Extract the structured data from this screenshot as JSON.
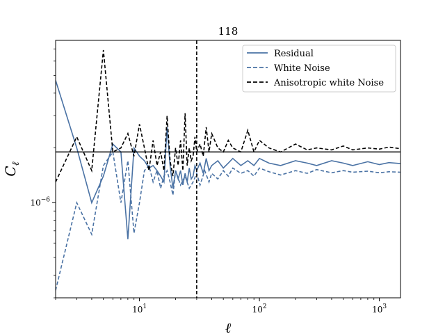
{
  "chart_data": {
    "type": "line",
    "title": "118",
    "xlabel": "ℓ",
    "ylabel_main": "C",
    "ylabel_sub": "ℓ",
    "xscale": "log",
    "yscale": "log",
    "xlim": [
      2,
      1500
    ],
    "ylim": [
      3e-07,
      7.8e-06
    ],
    "x_ticks": [
      {
        "value": 10,
        "base": "10",
        "exp": "1"
      },
      {
        "value": 100,
        "base": "10",
        "exp": "2"
      },
      {
        "value": 1000,
        "base": "10",
        "exp": "3"
      }
    ],
    "y_ticks": [
      {
        "value": 1e-06,
        "base": "10",
        "exp": "−6"
      }
    ],
    "hline": {
      "y": 1.9e-06,
      "color": "#000000"
    },
    "vline": {
      "x": 30,
      "color": "#000000",
      "style": "dashed"
    },
    "legend_position": "top-right",
    "series": [
      {
        "name": "Residual",
        "color": "#4a72a4",
        "style": "solid",
        "x": [
          2,
          3,
          4,
          5,
          6,
          7,
          8,
          9,
          10,
          11,
          12,
          13,
          14,
          15,
          16,
          17,
          18,
          19,
          20,
          21,
          22,
          23,
          24,
          25,
          26,
          27,
          28,
          29,
          30,
          32,
          34,
          36,
          38,
          40,
          45,
          50,
          55,
          60,
          70,
          80,
          90,
          100,
          120,
          150,
          200,
          250,
          300,
          400,
          500,
          600,
          800,
          1000,
          1200,
          1500
        ],
        "y": [
          4.7e-06,
          2e-06,
          1e-06,
          1.4e-06,
          2.1e-06,
          1.9e-06,
          6.3e-07,
          2e-06,
          1.8e-06,
          1.7e-06,
          1.55e-06,
          1.6e-06,
          1.5e-06,
          1.4e-06,
          1.3e-06,
          2.6e-06,
          1.6e-06,
          1.2e-06,
          1.5e-06,
          1.35e-06,
          1.5e-06,
          1.25e-06,
          1.45e-06,
          1.3e-06,
          1.55e-06,
          1.35e-06,
          1.4e-06,
          1.6e-06,
          1.5e-06,
          1.65e-06,
          1.45e-06,
          1.75e-06,
          1.5e-06,
          1.6e-06,
          1.7e-06,
          1.55e-06,
          1.65e-06,
          1.75e-06,
          1.6e-06,
          1.7e-06,
          1.6e-06,
          1.75e-06,
          1.65e-06,
          1.6e-06,
          1.7e-06,
          1.65e-06,
          1.6e-06,
          1.7e-06,
          1.65e-06,
          1.6e-06,
          1.68e-06,
          1.62e-06,
          1.66e-06,
          1.64e-06
        ]
      },
      {
        "name": "White Noise",
        "color": "#4a72a4",
        "style": "dashed",
        "x": [
          2,
          3,
          4,
          5,
          6,
          7,
          8,
          9,
          10,
          11,
          12,
          13,
          14,
          15,
          16,
          17,
          18,
          19,
          20,
          22,
          24,
          26,
          28,
          30,
          32,
          35,
          38,
          40,
          45,
          50,
          55,
          60,
          70,
          80,
          90,
          100,
          120,
          150,
          200,
          250,
          300,
          400,
          500,
          600,
          800,
          1000,
          1200,
          1500
        ],
        "y": [
          3.3e-07,
          1e-06,
          6.7e-07,
          1.6e-06,
          1.9e-06,
          1e-06,
          1.7e-06,
          6.8e-07,
          1e-06,
          1.5e-06,
          1.6e-06,
          1.3e-06,
          1.5e-06,
          1.2e-06,
          1.4e-06,
          1.5e-06,
          1.3e-06,
          1.1e-06,
          1.5e-06,
          1.25e-06,
          1.4e-06,
          1.2e-06,
          1.3e-06,
          1.45e-06,
          1.25e-06,
          1.5e-06,
          1.3e-06,
          1.45e-06,
          1.35e-06,
          1.5e-06,
          1.4e-06,
          1.55e-06,
          1.45e-06,
          1.5e-06,
          1.4e-06,
          1.55e-06,
          1.48e-06,
          1.42e-06,
          1.5e-06,
          1.45e-06,
          1.52e-06,
          1.46e-06,
          1.5e-06,
          1.47e-06,
          1.49e-06,
          1.46e-06,
          1.48e-06,
          1.47e-06
        ]
      },
      {
        "name": "Anisotropic white Noise",
        "color": "#000000",
        "style": "dashed",
        "x": [
          2,
          3,
          4,
          5,
          6,
          7,
          8,
          9,
          10,
          11,
          12,
          13,
          14,
          15,
          16,
          17,
          18,
          19,
          20,
          21,
          22,
          23,
          24,
          25,
          26,
          27,
          28,
          29,
          30,
          32,
          34,
          36,
          38,
          40,
          45,
          50,
          55,
          60,
          70,
          80,
          90,
          100,
          120,
          150,
          200,
          250,
          300,
          400,
          500,
          600,
          800,
          1000,
          1200,
          1500
        ],
        "y": [
          1.3e-06,
          2.3e-06,
          1.5e-06,
          6.9e-06,
          1.9e-06,
          2e-06,
          2.4e-06,
          1.8e-06,
          2.7e-06,
          2e-06,
          1.5e-06,
          2.2e-06,
          1.6e-06,
          1.9e-06,
          1.5e-06,
          3e-06,
          1.7e-06,
          1.4e-06,
          2e-06,
          1.6e-06,
          2.2e-06,
          1.5e-06,
          3.1e-06,
          1.6e-06,
          2e-06,
          1.7e-06,
          1.8e-06,
          2.3e-06,
          1.9e-06,
          2.1e-06,
          1.8e-06,
          2.6e-06,
          1.9e-06,
          2.4e-06,
          2e-06,
          1.9e-06,
          2.2e-06,
          2e-06,
          1.9e-06,
          2.5e-06,
          1.9e-06,
          2.2e-06,
          2e-06,
          1.9e-06,
          2.1e-06,
          1.95e-06,
          2e-06,
          1.95e-06,
          2.05e-06,
          1.95e-06,
          2e-06,
          1.97e-06,
          2.02e-06,
          1.98e-06
        ]
      }
    ]
  }
}
